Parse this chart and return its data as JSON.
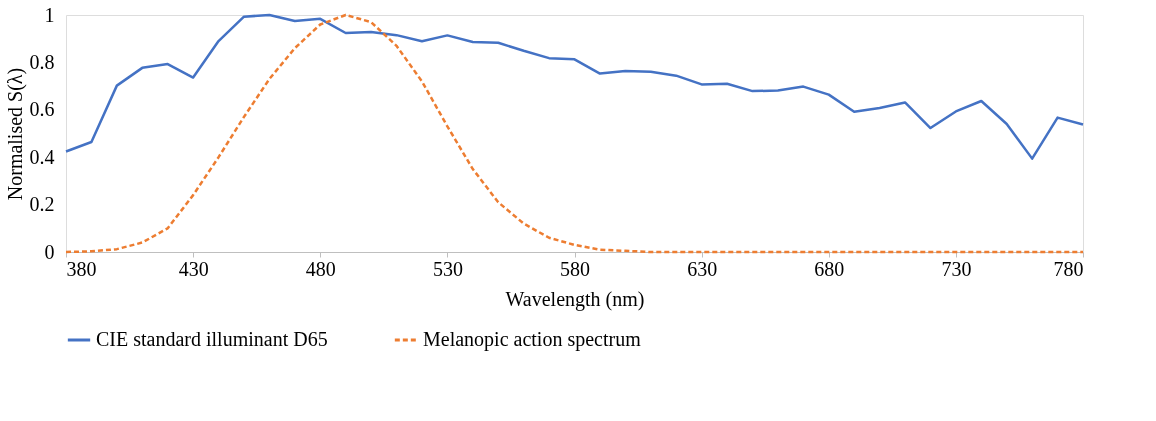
{
  "chart_data": {
    "type": "line",
    "xlabel": "Wavelength (nm)",
    "ylabel": "Normalised S(λ)",
    "x": [
      380,
      390,
      400,
      410,
      420,
      430,
      440,
      450,
      460,
      470,
      480,
      490,
      500,
      510,
      520,
      530,
      540,
      550,
      560,
      570,
      580,
      590,
      600,
      610,
      620,
      630,
      640,
      650,
      660,
      670,
      680,
      690,
      700,
      710,
      720,
      730,
      740,
      750,
      760,
      770,
      780
    ],
    "series": [
      {
        "name": "CIE standard illuminant D65",
        "color": "#4472c4",
        "line_style": "solid",
        "values": [
          0.424,
          0.464,
          0.702,
          0.777,
          0.793,
          0.736,
          0.89,
          0.993,
          1.0,
          0.975,
          0.984,
          0.924,
          0.928,
          0.915,
          0.889,
          0.914,
          0.886,
          0.883,
          0.849,
          0.818,
          0.813,
          0.753,
          0.764,
          0.761,
          0.744,
          0.707,
          0.71,
          0.679,
          0.681,
          0.698,
          0.664,
          0.592,
          0.608,
          0.631,
          0.523,
          0.593,
          0.637,
          0.54,
          0.394,
          0.567,
          0.538
        ]
      },
      {
        "name": "Melanopic action spectrum",
        "color": "#ed7d31",
        "line_style": "dashed",
        "values": [
          0.0,
          0.003,
          0.012,
          0.04,
          0.1,
          0.24,
          0.4,
          0.57,
          0.73,
          0.86,
          0.96,
          1.0,
          0.97,
          0.87,
          0.72,
          0.53,
          0.35,
          0.21,
          0.12,
          0.06,
          0.03,
          0.01,
          0.005,
          0,
          0,
          0,
          0,
          0,
          0,
          0,
          0,
          0,
          0,
          0,
          0,
          0,
          0,
          0,
          0,
          0,
          0
        ]
      }
    ],
    "xlim": [
      380,
      780
    ],
    "xticks": [
      380,
      430,
      480,
      530,
      580,
      630,
      680,
      730,
      780
    ],
    "ylim": [
      0,
      1
    ],
    "yticks": [
      0,
      0.2,
      0.4,
      0.6,
      0.8,
      1
    ],
    "grid": false,
    "legend": "bottom",
    "marker": "none"
  }
}
